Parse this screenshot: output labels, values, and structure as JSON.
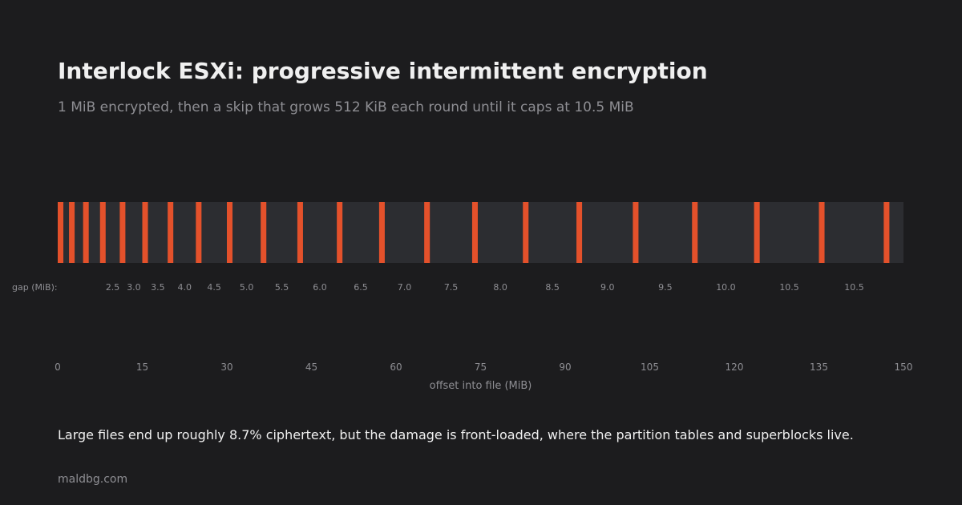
{
  "title": "Interlock ESXi: progressive intermittent encryption",
  "subtitle": "1 MiB encrypted, then a skip that grows 512 KiB each round until it caps at 10.5 MiB",
  "footnote": "Large files end up roughly 8.7% ciphertext, but the damage is front-loaded, where the partition tables and superblocks live.",
  "source": "maldbg.com",
  "colors": {
    "background": "#1c1c1e",
    "track": "#2c2d31",
    "encrypted": "#e4512b",
    "muted_text": "#8e8e93",
    "text": "#f0f0f0"
  },
  "chart_data": {
    "type": "timeline",
    "xlabel": "offset into file (MiB)",
    "xlim": [
      0,
      150
    ],
    "x_ticks": [
      0,
      15,
      30,
      45,
      60,
      75,
      90,
      105,
      120,
      135,
      150
    ],
    "gap_row_label": "gap (MiB):",
    "encrypted_chunk_size_mib": 1,
    "encrypted_chunk_starts_mib": [
      0,
      2,
      4.5,
      7.5,
      11,
      15,
      19.5,
      24.5,
      30,
      36,
      42.5,
      49.5,
      57,
      65,
      73.5,
      82.5,
      92,
      102,
      112.5,
      123.5,
      135,
      146.5
    ],
    "gaps_mib": [
      1,
      1.5,
      2.0,
      2.5,
      3.0,
      3.5,
      4.0,
      4.5,
      5.0,
      5.5,
      6.0,
      6.5,
      7.0,
      7.5,
      8.0,
      8.5,
      9.0,
      9.5,
      10.0,
      10.5,
      10.5
    ],
    "gap_labels": [
      "",
      "",
      "",
      "2.5",
      "3.0",
      "3.5",
      "4.0",
      "4.5",
      "5.0",
      "5.5",
      "6.0",
      "6.5",
      "7.0",
      "7.5",
      "8.0",
      "8.5",
      "9.0",
      "9.5",
      "10.0",
      "10.5",
      "10.5"
    ]
  }
}
